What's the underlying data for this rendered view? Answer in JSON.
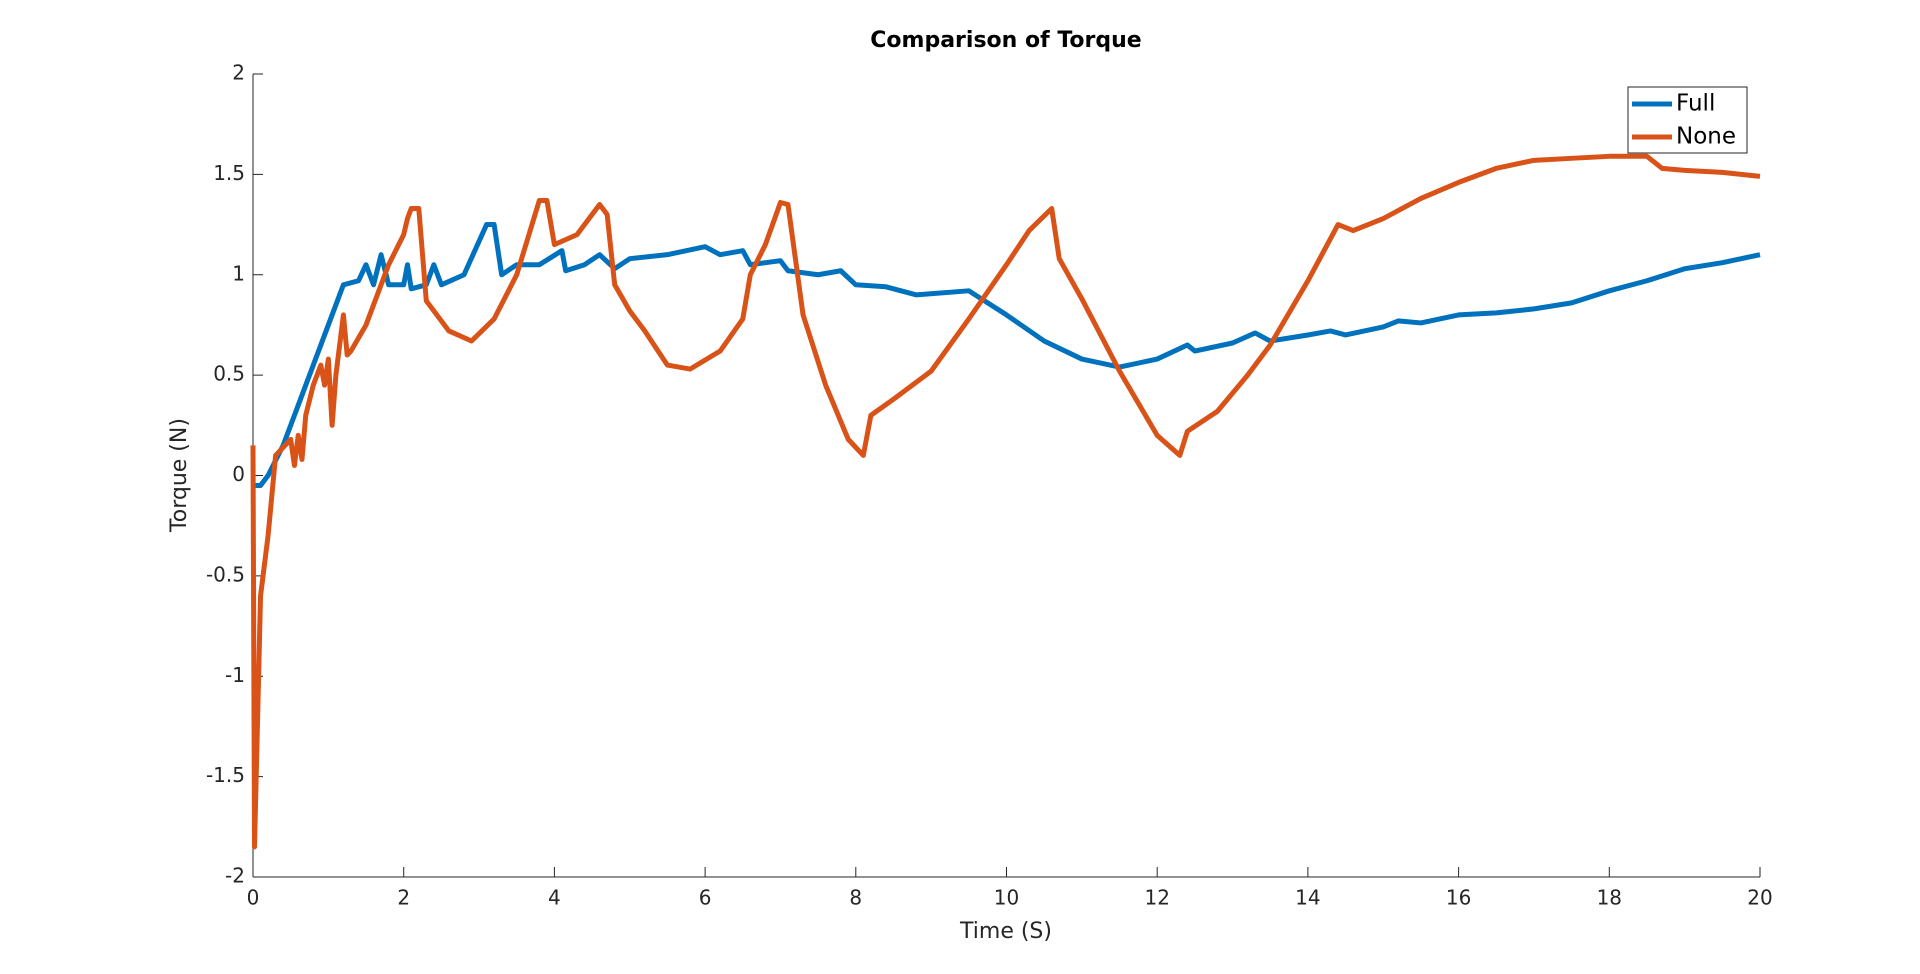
{
  "chart_data": {
    "type": "line",
    "title": "Comparison of Torque",
    "x_label": "Time (S)",
    "y_label": "Torque (N)",
    "xlim": [
      0,
      20
    ],
    "xticks": [
      0,
      2,
      4,
      6,
      8,
      10,
      12,
      14,
      16,
      18,
      20
    ],
    "ylim": [
      -2,
      2
    ],
    "yticks": [
      -2,
      -1.5,
      -1,
      -0.5,
      0,
      0.5,
      1,
      1.5,
      2
    ],
    "grid": false,
    "legend": "northeast",
    "series": [
      {
        "name": "Full",
        "color": "#0072bd",
        "x": [
          0,
          0.1,
          0.2,
          0.4,
          0.6,
          0.8,
          1.0,
          1.2,
          1.4,
          1.5,
          1.6,
          1.7,
          1.8,
          2.0,
          2.05,
          2.1,
          2.3,
          2.4,
          2.5,
          2.8,
          3.1,
          3.2,
          3.3,
          3.5,
          3.8,
          4.1,
          4.15,
          4.4,
          4.6,
          4.8,
          5.0,
          5.5,
          6.0,
          6.2,
          6.5,
          6.6,
          7.0,
          7.1,
          7.5,
          7.8,
          8.0,
          8.4,
          8.8,
          9.5,
          10.0,
          10.5,
          11.0,
          11.5,
          12.0,
          12.4,
          12.5,
          13.0,
          13.3,
          13.5,
          14.0,
          14.3,
          14.5,
          15.0,
          15.2,
          15.5,
          16.0,
          16.5,
          17.0,
          17.5,
          18.0,
          18.5,
          19.0,
          19.5,
          20.0
        ],
        "values": [
          -0.05,
          -0.05,
          0,
          0.15,
          0.35,
          0.55,
          0.75,
          0.95,
          0.97,
          1.05,
          0.95,
          1.1,
          0.95,
          0.95,
          1.05,
          0.93,
          0.95,
          1.05,
          0.95,
          1.0,
          1.25,
          1.25,
          1.0,
          1.05,
          1.05,
          1.12,
          1.02,
          1.05,
          1.1,
          1.03,
          1.08,
          1.1,
          1.14,
          1.1,
          1.12,
          1.05,
          1.07,
          1.02,
          1.0,
          1.02,
          0.95,
          0.94,
          0.9,
          0.92,
          0.8,
          0.67,
          0.58,
          0.54,
          0.58,
          0.65,
          0.62,
          0.66,
          0.71,
          0.67,
          0.7,
          0.72,
          0.7,
          0.74,
          0.77,
          0.76,
          0.8,
          0.81,
          0.83,
          0.86,
          0.92,
          0.97,
          1.03,
          1.06,
          1.1
        ]
      },
      {
        "name": "None",
        "color": "#d95319",
        "x": [
          0,
          0.02,
          0.1,
          0.2,
          0.3,
          0.5,
          0.55,
          0.6,
          0.65,
          0.7,
          0.8,
          0.9,
          0.95,
          1.0,
          1.05,
          1.1,
          1.2,
          1.25,
          1.3,
          1.5,
          1.8,
          2.0,
          2.05,
          2.1,
          2.2,
          2.3,
          2.6,
          2.9,
          3.2,
          3.5,
          3.8,
          3.9,
          4.0,
          4.3,
          4.6,
          4.7,
          4.8,
          5.0,
          5.2,
          5.5,
          5.8,
          6.2,
          6.5,
          6.6,
          6.8,
          7.0,
          7.1,
          7.3,
          7.6,
          7.9,
          8.1,
          8.2,
          8.5,
          9.0,
          9.5,
          10.0,
          10.3,
          10.6,
          10.7,
          11.0,
          11.5,
          12.0,
          12.3,
          12.4,
          12.8,
          13.2,
          13.5,
          14.0,
          14.4,
          14.6,
          15.0,
          15.5,
          16.0,
          16.5,
          17.0,
          17.5,
          18.0,
          18.5,
          18.7,
          19.0,
          19.5,
          20.0
        ],
        "values": [
          0.15,
          -1.85,
          -0.6,
          -0.3,
          0.1,
          0.18,
          0.05,
          0.2,
          0.08,
          0.3,
          0.45,
          0.55,
          0.45,
          0.58,
          0.25,
          0.5,
          0.8,
          0.6,
          0.62,
          0.75,
          1.05,
          1.2,
          1.28,
          1.33,
          1.33,
          0.87,
          0.72,
          0.67,
          0.78,
          1.0,
          1.37,
          1.37,
          1.15,
          1.2,
          1.35,
          1.3,
          0.95,
          0.82,
          0.72,
          0.55,
          0.53,
          0.62,
          0.78,
          1.0,
          1.15,
          1.36,
          1.35,
          0.8,
          0.45,
          0.18,
          0.1,
          0.3,
          0.38,
          0.52,
          0.78,
          1.05,
          1.22,
          1.33,
          1.08,
          0.88,
          0.52,
          0.2,
          0.1,
          0.22,
          0.32,
          0.5,
          0.65,
          0.97,
          1.25,
          1.22,
          1.28,
          1.38,
          1.46,
          1.53,
          1.57,
          1.58,
          1.59,
          1.59,
          1.53,
          1.52,
          1.51,
          1.49
        ]
      }
    ]
  }
}
